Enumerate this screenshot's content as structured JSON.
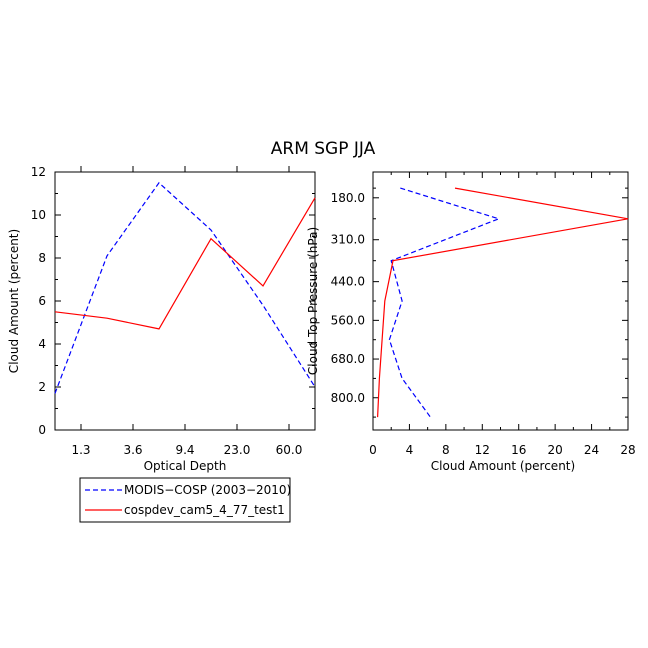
{
  "title": "ARM SGP JJA",
  "legend": [
    {
      "name": "MODIS−COSP (2003−2010)",
      "color": "#0000ff",
      "dash": "dashed"
    },
    {
      "name": "cospdev_cam5_4_77_test1",
      "color": "#ff0000",
      "dash": "solid"
    }
  ],
  "chart_data": [
    {
      "type": "line",
      "xlabel": "Optical Depth",
      "ylabel": "Cloud Amount (percent)",
      "x_tick_labels": [
        "1.3",
        "3.6",
        "9.4",
        "23.0",
        "60.0"
      ],
      "y_tick_labels": [
        "0",
        "2",
        "4",
        "6",
        "8",
        "10",
        "12"
      ],
      "ylim": [
        0,
        12
      ],
      "x_category_centers": [
        1,
        2,
        3,
        4,
        5
      ],
      "xlim": [
        0.5,
        5.5
      ],
      "series": [
        {
          "name": "MODIS−COSP (2003−2010)",
          "x": [
            0.5,
            1.5,
            2.5,
            3.5,
            4.5,
            5.5
          ],
          "values": [
            1.7,
            8.1,
            11.5,
            9.3,
            5.8,
            2.0
          ]
        },
        {
          "name": "cospdev_cam5_4_77_test1",
          "x": [
            0.5,
            1.5,
            2.5,
            3.5,
            4.5,
            5.5
          ],
          "values": [
            5.5,
            5.2,
            4.7,
            8.9,
            6.7,
            10.8
          ]
        }
      ]
    },
    {
      "type": "line",
      "xlabel": "Cloud Amount (percent)",
      "ylabel": "Cloud Top Pressure (hPa)",
      "x_tick_labels": [
        "0",
        "4",
        "8",
        "12",
        "16",
        "20",
        "24",
        "28"
      ],
      "y_tick_labels": [
        "180.0",
        "310.0",
        "440.0",
        "560.0",
        "680.0",
        "800.0"
      ],
      "xlim": [
        0,
        28
      ],
      "ylim": [
        900,
        100
      ],
      "series": [
        {
          "name": "MODIS−COSP (2003−2010)",
          "pressure": [
            150,
            245,
            375,
            500,
            620,
            740,
            860
          ],
          "values": [
            3.0,
            13.8,
            2.0,
            3.2,
            1.8,
            3.2,
            6.3
          ]
        },
        {
          "name": "cospdev_cam5_4_77_test1",
          "pressure": [
            150,
            245,
            375,
            500,
            620,
            740,
            860
          ],
          "values": [
            9.0,
            28.0,
            2.2,
            1.3,
            1.0,
            0.7,
            0.5
          ]
        }
      ]
    }
  ]
}
